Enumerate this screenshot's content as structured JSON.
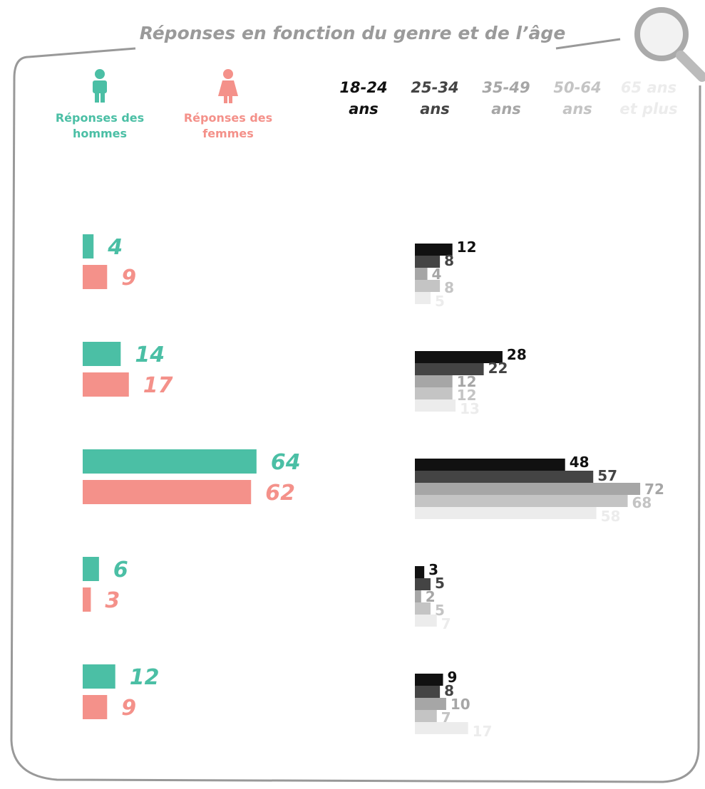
{
  "title": "Réponses en fonction du genre et de l’âge",
  "chart_data": [
    {
      "type": "hbar",
      "categories": [
        null,
        null,
        null,
        null,
        null
      ],
      "xlim": [
        0,
        100
      ],
      "series": [
        {
          "name": "Réponses des hommes",
          "color": "#4bbfa5",
          "values": [
            4,
            14,
            64,
            6,
            12
          ]
        },
        {
          "name": "Réponses des femmes",
          "color": "#f4918a",
          "values": [
            9,
            17,
            62,
            3,
            9
          ]
        }
      ]
    },
    {
      "type": "hbar",
      "categories": [
        null,
        null,
        null,
        null,
        null
      ],
      "xlim": [
        0,
        100
      ],
      "series": [
        {
          "name": "18-24 ans",
          "color": "#111111",
          "values": [
            12,
            28,
            48,
            3,
            9
          ]
        },
        {
          "name": "25-34 ans",
          "color": "#444444",
          "values": [
            8,
            22,
            57,
            5,
            8
          ]
        },
        {
          "name": "35-49 ans",
          "color": "#a6a6a6",
          "values": [
            4,
            12,
            72,
            2,
            10
          ]
        },
        {
          "name": "50-64 ans",
          "color": "#c4c4c4",
          "values": [
            8,
            12,
            68,
            5,
            7
          ]
        },
        {
          "name": "65 ans et plus",
          "color": "#ececec",
          "values": [
            5,
            13,
            58,
            7,
            17
          ]
        }
      ]
    }
  ]
}
